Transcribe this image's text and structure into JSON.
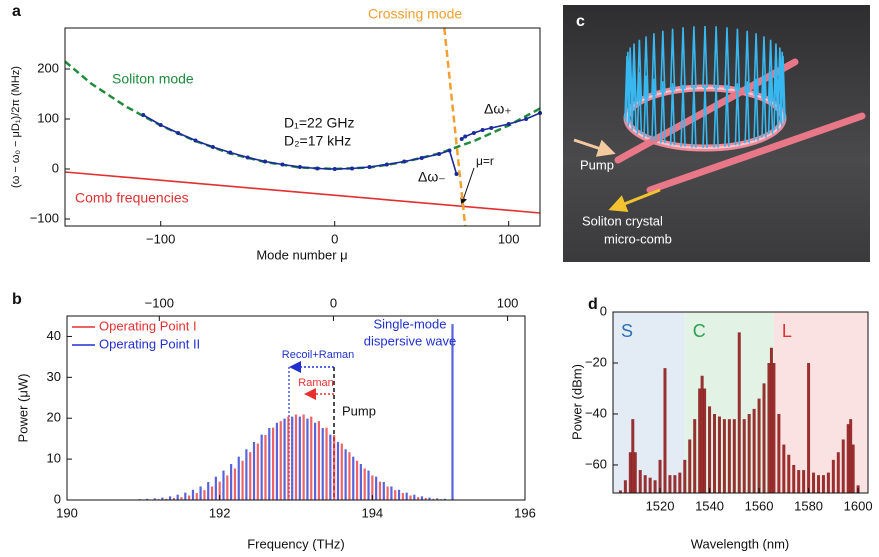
{
  "chart_data": [
    {
      "type": "line",
      "panel_label": "a",
      "x_label": "Mode number μ",
      "y_label": "(ω − ω₀ − μD₁)/2π (MHz)",
      "xlim": [
        -155,
        118
      ],
      "xticks": [
        {
          "value": -100,
          "label": "−100"
        },
        0,
        100
      ],
      "ylim": [
        -114,
        282
      ],
      "yticks": [
        {
          "value": -100,
          "label": "−100"
        },
        0,
        100,
        200
      ],
      "series": [
        {
          "name": "Soliton mode",
          "color": "#1e8c3c",
          "style": "dashed",
          "x": [
            -155,
            -140,
            -120,
            -100,
            -80,
            -60,
            -40,
            -20,
            0,
            20,
            40,
            60,
            80,
            100,
            118
          ],
          "values": [
            215,
            171,
            125,
            87,
            56,
            31,
            14,
            3,
            0,
            3,
            14,
            31,
            56,
            87,
            121
          ]
        },
        {
          "name": "Comb frequencies",
          "color": "#e03030",
          "x": [
            -155,
            118
          ],
          "values": [
            -6,
            -88
          ]
        },
        {
          "name": "Crossing mode",
          "color": "#f0a030",
          "style": "dashed",
          "x": [
            63,
            75
          ],
          "values": [
            282,
            -114
          ]
        },
        {
          "color": "#1a2a9c",
          "markers": true,
          "x": [
            -110,
            -100,
            -90,
            -80,
            -70,
            -60,
            -50,
            -40,
            -30,
            -20,
            -10,
            0,
            10,
            20,
            30,
            40,
            50,
            60,
            66,
            70,
            72,
            73,
            75,
            80,
            85,
            90,
            100,
            110,
            118
          ],
          "values": [
            108,
            88,
            72,
            57,
            44,
            33,
            23,
            15,
            9,
            4,
            1,
            0,
            1,
            4,
            9,
            15,
            22,
            30,
            37,
            -10,
            null,
            60,
            65,
            72,
            78,
            82,
            90,
            100,
            112
          ]
        }
      ],
      "annotations": [
        "D₁=22 GHz",
        "D₂=17 kHz",
        "Δω₊",
        "Δω₋",
        "μ=r"
      ]
    },
    {
      "type": "stem",
      "panel_label": "b",
      "x_label": "Frequency (THz)",
      "y_label": "Power (μW)",
      "xlim": [
        190,
        196
      ],
      "xticks": [
        190,
        192,
        194,
        196
      ],
      "x2lim": [
        -153,
        110
      ],
      "x2ticks": [
        {
          "value": -100,
          "label": "−100"
        },
        0,
        100
      ],
      "ylim": [
        0,
        45
      ],
      "yticks": [
        0,
        10,
        20,
        30,
        40
      ],
      "legend": "upper-left",
      "series": [
        {
          "name": "Operating Point I",
          "color": "#e83030",
          "x": [
            191.0,
            191.1,
            191.2,
            191.3,
            191.4,
            191.5,
            191.6,
            191.7,
            191.8,
            191.9,
            192.0,
            192.1,
            192.2,
            192.3,
            192.4,
            192.5,
            192.6,
            192.7,
            192.8,
            192.9,
            193.0,
            193.1,
            193.2,
            193.3,
            193.4,
            193.5,
            193.6,
            193.7,
            193.8,
            193.9,
            194.0,
            194.1,
            194.2,
            194.3,
            194.4,
            194.5,
            194.6,
            194.7,
            194.8,
            194.9,
            195.0
          ],
          "values": [
            0.1,
            0.1,
            0.2,
            0.3,
            0.5,
            0.7,
            1.1,
            1.7,
            2.4,
            3.3,
            4.5,
            6.0,
            7.7,
            9.6,
            11.7,
            13.8,
            15.9,
            17.7,
            19.3,
            20.4,
            20.9,
            20.9,
            20.4,
            19.3,
            17.7,
            15.9,
            13.8,
            11.7,
            9.6,
            7.7,
            6.0,
            4.5,
            3.3,
            2.4,
            1.7,
            1.1,
            0.7,
            0.5,
            0.3,
            0.2,
            0.1
          ]
        },
        {
          "name": "Operating Point II",
          "color": "#2030d0",
          "x": [
            190.95,
            191.05,
            191.15,
            191.25,
            191.35,
            191.45,
            191.55,
            191.65,
            191.75,
            191.85,
            191.95,
            192.05,
            192.15,
            192.25,
            192.35,
            192.45,
            192.55,
            192.65,
            192.75,
            192.85,
            192.95,
            193.05,
            193.15,
            193.25,
            193.35,
            193.45,
            193.55,
            193.65,
            193.75,
            193.85,
            193.95,
            194.05,
            194.15,
            194.25,
            194.35,
            194.45,
            194.55,
            194.65,
            194.75,
            194.85,
            194.95,
            195.05
          ],
          "values": [
            0.2,
            0.3,
            0.4,
            0.6,
            0.9,
            1.3,
            1.8,
            2.5,
            3.3,
            4.4,
            5.7,
            7.2,
            8.8,
            10.6,
            12.4,
            14.2,
            16.0,
            17.6,
            18.9,
            19.9,
            20.4,
            20.4,
            19.9,
            18.9,
            17.6,
            16.0,
            14.2,
            12.4,
            10.6,
            8.8,
            7.2,
            5.7,
            4.4,
            3.3,
            2.5,
            1.8,
            1.3,
            0.9,
            0.6,
            0.4,
            0.3,
            43
          ]
        }
      ],
      "annotations": [
        "Single-mode",
        "dispersive wave",
        "Recoil+Raman",
        "Raman",
        "Pump"
      ]
    },
    {
      "type": "stem",
      "panel_label": "d",
      "x_label": "Wavelength (nm)",
      "y_label": "Power (dBm)",
      "xlim": [
        1501,
        1604
      ],
      "xticks": [
        1520,
        1540,
        1560,
        1580,
        1600
      ],
      "ylim": [
        -71,
        0
      ],
      "yticks": [
        {
          "value": -60,
          "label": "−60"
        },
        {
          "value": -40,
          "label": "−40"
        },
        {
          "value": -20,
          "label": "−20"
        },
        0
      ],
      "bands": [
        {
          "name": "S",
          "start": 1501,
          "end": 1530,
          "color": "#e3ebf5",
          "label_color": "#2a70b8"
        },
        {
          "name": "C",
          "start": 1530,
          "end": 1566,
          "color": "#e2f2e5",
          "label_color": "#2aa050"
        },
        {
          "name": "L",
          "start": 1566,
          "end": 1604,
          "color": "#fbe2e2",
          "label_color": "#e03030"
        }
      ],
      "series": [
        {
          "color": "#8e1c1c",
          "x": [
            1504,
            1506,
            1508,
            1509,
            1510,
            1512,
            1514,
            1516,
            1518,
            1520,
            1522,
            1524,
            1526,
            1528,
            1530,
            1532,
            1534,
            1536,
            1537,
            1538,
            1540,
            1542,
            1544,
            1546,
            1548,
            1550,
            1552,
            1554,
            1556,
            1558,
            1560,
            1562,
            1564,
            1565,
            1566,
            1568,
            1570,
            1572,
            1574,
            1576,
            1578,
            1580,
            1582,
            1584,
            1586,
            1588,
            1590,
            1592,
            1594,
            1596,
            1597,
            1598,
            1600
          ],
          "values": [
            -70,
            -66,
            -55,
            -42,
            -55,
            -62,
            -64,
            -65,
            -66,
            -58,
            -22,
            -64,
            -64,
            -63,
            -58,
            -50,
            -42,
            -30,
            -25,
            -30,
            -37,
            -40,
            -41,
            -42,
            -42,
            -42,
            -8,
            -42,
            -40,
            -38,
            -34,
            -28,
            -20,
            -14,
            -20,
            -40,
            -52,
            -56,
            -60,
            -62,
            -62,
            -20,
            -63,
            -64,
            -64,
            -63,
            -58,
            -55,
            -50,
            -44,
            -42,
            -52,
            -68
          ]
        }
      ]
    }
  ],
  "illustration": {
    "label": "c",
    "texts": [
      "Pump",
      "Soliton crystal",
      "micro-comb"
    ]
  }
}
